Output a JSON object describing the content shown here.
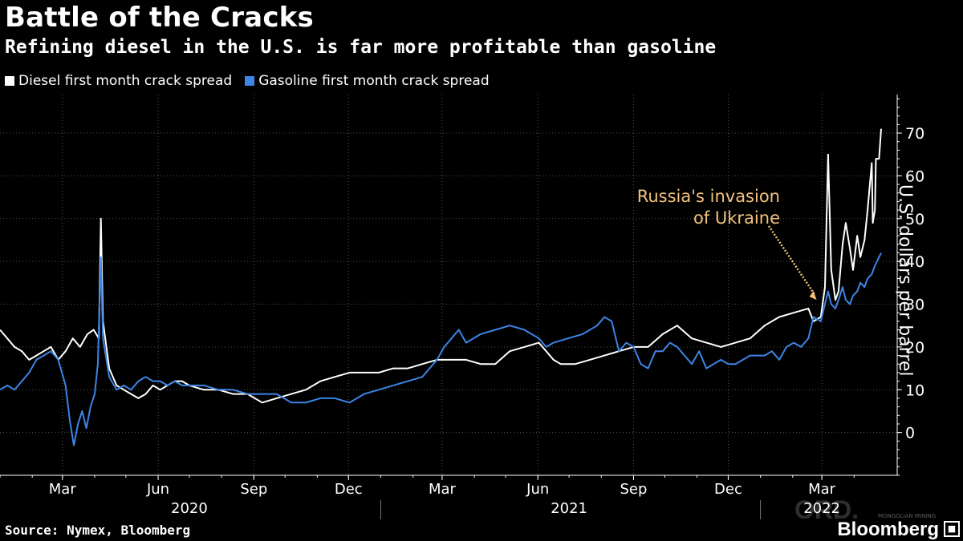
{
  "title": "Battle of the Cracks",
  "subtitle": "Refining diesel in the U.S. is far more profitable than gasoline",
  "source": "Source: Nymex, Bloomberg",
  "brand": "Bloomberg",
  "watermark": "ORD.",
  "watermark_sub": "MONGOLIAN MINING",
  "colors": {
    "diesel": "#ffffff",
    "gasoline": "#3d85e6",
    "annotation": "#f2c27b",
    "grid": "#555555"
  },
  "chart_data": {
    "type": "line",
    "title": "Battle of the Cracks",
    "subtitle": "Refining diesel in the U.S. is far more profitable than gasoline",
    "ylabel": "U.S. dollars per barrel",
    "ylim": [
      -10,
      79
    ],
    "yticks": [
      0,
      10,
      20,
      30,
      40,
      50,
      60,
      70
    ],
    "xlim": [
      "2020-01-01",
      "2022-04-27"
    ],
    "month_ticks": [
      {
        "label": "Mar",
        "x": "2020-03-01"
      },
      {
        "label": "Jun",
        "x": "2020-06-01"
      },
      {
        "label": "Sep",
        "x": "2020-09-01"
      },
      {
        "label": "Dec",
        "x": "2020-12-01"
      },
      {
        "label": "Mar",
        "x": "2021-03-01"
      },
      {
        "label": "Jun",
        "x": "2021-06-01"
      },
      {
        "label": "Sep",
        "x": "2021-09-01"
      },
      {
        "label": "Dec",
        "x": "2021-12-01"
      },
      {
        "label": "Mar",
        "x": "2022-03-01"
      }
    ],
    "year_labels": [
      {
        "label": "2020",
        "x": "2020-07-01"
      },
      {
        "label": "2021",
        "x": "2021-07-01"
      },
      {
        "label": "2022",
        "x": "2022-03-01"
      }
    ],
    "year_boundaries": [
      "2021-01-01",
      "2022-01-01"
    ],
    "grid": true,
    "legend": "top-left",
    "series": [
      {
        "name": "Diesel first month crack spread",
        "color": "#ffffff",
        "points": [
          [
            "2020-01-01",
            24
          ],
          [
            "2020-01-08",
            22
          ],
          [
            "2020-01-15",
            20
          ],
          [
            "2020-01-22",
            19
          ],
          [
            "2020-01-29",
            17
          ],
          [
            "2020-02-05",
            18
          ],
          [
            "2020-02-12",
            19
          ],
          [
            "2020-02-19",
            20
          ],
          [
            "2020-02-26",
            17
          ],
          [
            "2020-03-04",
            19
          ],
          [
            "2020-03-11",
            22
          ],
          [
            "2020-03-18",
            20
          ],
          [
            "2020-03-25",
            23
          ],
          [
            "2020-03-31",
            24
          ],
          [
            "2020-04-05",
            22
          ],
          [
            "2020-04-07",
            50
          ],
          [
            "2020-04-09",
            26
          ],
          [
            "2020-04-15",
            15
          ],
          [
            "2020-04-22",
            11
          ],
          [
            "2020-04-29",
            10
          ],
          [
            "2020-05-06",
            9
          ],
          [
            "2020-05-13",
            8
          ],
          [
            "2020-05-20",
            9
          ],
          [
            "2020-05-27",
            11
          ],
          [
            "2020-06-03",
            10
          ],
          [
            "2020-06-10",
            11
          ],
          [
            "2020-06-17",
            12
          ],
          [
            "2020-06-24",
            12
          ],
          [
            "2020-07-01",
            11
          ],
          [
            "2020-07-15",
            10
          ],
          [
            "2020-07-29",
            10
          ],
          [
            "2020-08-12",
            9
          ],
          [
            "2020-08-26",
            9
          ],
          [
            "2020-09-09",
            7
          ],
          [
            "2020-09-23",
            8
          ],
          [
            "2020-10-07",
            9
          ],
          [
            "2020-10-21",
            10
          ],
          [
            "2020-11-04",
            12
          ],
          [
            "2020-11-18",
            13
          ],
          [
            "2020-12-02",
            14
          ],
          [
            "2020-12-16",
            14
          ],
          [
            "2020-12-30",
            14
          ],
          [
            "2021-01-13",
            15
          ],
          [
            "2021-01-27",
            15
          ],
          [
            "2021-02-10",
            16
          ],
          [
            "2021-02-24",
            17
          ],
          [
            "2021-03-10",
            17
          ],
          [
            "2021-03-24",
            17
          ],
          [
            "2021-04-07",
            16
          ],
          [
            "2021-04-21",
            16
          ],
          [
            "2021-05-05",
            19
          ],
          [
            "2021-05-19",
            20
          ],
          [
            "2021-06-02",
            21
          ],
          [
            "2021-06-09",
            19
          ],
          [
            "2021-06-16",
            17
          ],
          [
            "2021-06-23",
            16
          ],
          [
            "2021-07-07",
            16
          ],
          [
            "2021-07-21",
            17
          ],
          [
            "2021-08-04",
            18
          ],
          [
            "2021-08-18",
            19
          ],
          [
            "2021-09-01",
            20
          ],
          [
            "2021-09-15",
            20
          ],
          [
            "2021-09-29",
            23
          ],
          [
            "2021-10-13",
            25
          ],
          [
            "2021-10-27",
            22
          ],
          [
            "2021-11-10",
            21
          ],
          [
            "2021-11-24",
            20
          ],
          [
            "2021-12-08",
            21
          ],
          [
            "2021-12-22",
            22
          ],
          [
            "2022-01-05",
            25
          ],
          [
            "2022-01-19",
            27
          ],
          [
            "2022-02-02",
            28
          ],
          [
            "2022-02-16",
            29
          ],
          [
            "2022-02-21",
            26
          ],
          [
            "2022-02-28",
            27
          ],
          [
            "2022-03-04",
            34
          ],
          [
            "2022-03-07",
            65
          ],
          [
            "2022-03-10",
            38
          ],
          [
            "2022-03-14",
            31
          ],
          [
            "2022-03-17",
            33
          ],
          [
            "2022-03-21",
            44
          ],
          [
            "2022-03-24",
            49
          ],
          [
            "2022-03-28",
            43
          ],
          [
            "2022-03-31",
            38
          ],
          [
            "2022-04-04",
            46
          ],
          [
            "2022-04-07",
            41
          ],
          [
            "2022-04-11",
            45
          ],
          [
            "2022-04-14",
            52
          ],
          [
            "2022-04-18",
            63
          ],
          [
            "2022-04-19",
            49
          ],
          [
            "2022-04-21",
            52
          ],
          [
            "2022-04-22",
            64
          ],
          [
            "2022-04-25",
            64
          ],
          [
            "2022-04-27",
            71
          ]
        ]
      },
      {
        "name": "Gasoline first month crack spread",
        "color": "#3d85e6",
        "points": [
          [
            "2020-01-01",
            10
          ],
          [
            "2020-01-08",
            11
          ],
          [
            "2020-01-15",
            10
          ],
          [
            "2020-01-22",
            12
          ],
          [
            "2020-01-29",
            14
          ],
          [
            "2020-02-05",
            17
          ],
          [
            "2020-02-12",
            18
          ],
          [
            "2020-02-19",
            19
          ],
          [
            "2020-02-26",
            17
          ],
          [
            "2020-03-04",
            11
          ],
          [
            "2020-03-08",
            3
          ],
          [
            "2020-03-12",
            -3
          ],
          [
            "2020-03-16",
            2
          ],
          [
            "2020-03-20",
            5
          ],
          [
            "2020-03-24",
            1
          ],
          [
            "2020-03-28",
            6
          ],
          [
            "2020-04-01",
            9
          ],
          [
            "2020-04-04",
            16
          ],
          [
            "2020-04-07",
            41
          ],
          [
            "2020-04-09",
            22
          ],
          [
            "2020-04-15",
            13
          ],
          [
            "2020-04-22",
            10
          ],
          [
            "2020-04-29",
            11
          ],
          [
            "2020-05-06",
            10
          ],
          [
            "2020-05-13",
            12
          ],
          [
            "2020-05-20",
            13
          ],
          [
            "2020-05-27",
            12
          ],
          [
            "2020-06-03",
            12
          ],
          [
            "2020-06-10",
            11
          ],
          [
            "2020-06-17",
            12
          ],
          [
            "2020-06-24",
            11
          ],
          [
            "2020-07-01",
            11
          ],
          [
            "2020-07-15",
            11
          ],
          [
            "2020-07-29",
            10
          ],
          [
            "2020-08-12",
            10
          ],
          [
            "2020-08-26",
            9
          ],
          [
            "2020-09-09",
            9
          ],
          [
            "2020-09-23",
            9
          ],
          [
            "2020-10-07",
            7
          ],
          [
            "2020-10-21",
            7
          ],
          [
            "2020-11-04",
            8
          ],
          [
            "2020-11-18",
            8
          ],
          [
            "2020-12-02",
            7
          ],
          [
            "2020-12-16",
            9
          ],
          [
            "2020-12-30",
            10
          ],
          [
            "2021-01-13",
            11
          ],
          [
            "2021-01-27",
            12
          ],
          [
            "2021-02-10",
            13
          ],
          [
            "2021-02-24",
            17
          ],
          [
            "2021-03-03",
            20
          ],
          [
            "2021-03-10",
            22
          ],
          [
            "2021-03-17",
            24
          ],
          [
            "2021-03-24",
            21
          ],
          [
            "2021-04-07",
            23
          ],
          [
            "2021-04-21",
            24
          ],
          [
            "2021-05-05",
            25
          ],
          [
            "2021-05-19",
            24
          ],
          [
            "2021-06-02",
            22
          ],
          [
            "2021-06-09",
            20
          ],
          [
            "2021-06-16",
            21
          ],
          [
            "2021-06-30",
            22
          ],
          [
            "2021-07-14",
            23
          ],
          [
            "2021-07-28",
            25
          ],
          [
            "2021-08-04",
            27
          ],
          [
            "2021-08-11",
            26
          ],
          [
            "2021-08-18",
            19
          ],
          [
            "2021-08-25",
            21
          ],
          [
            "2021-09-01",
            20
          ],
          [
            "2021-09-08",
            16
          ],
          [
            "2021-09-15",
            15
          ],
          [
            "2021-09-22",
            19
          ],
          [
            "2021-09-29",
            19
          ],
          [
            "2021-10-06",
            21
          ],
          [
            "2021-10-13",
            20
          ],
          [
            "2021-10-20",
            18
          ],
          [
            "2021-10-27",
            16
          ],
          [
            "2021-11-03",
            19
          ],
          [
            "2021-11-10",
            15
          ],
          [
            "2021-11-17",
            16
          ],
          [
            "2021-11-24",
            17
          ],
          [
            "2021-12-01",
            16
          ],
          [
            "2021-12-08",
            16
          ],
          [
            "2021-12-15",
            17
          ],
          [
            "2021-12-22",
            18
          ],
          [
            "2022-01-05",
            18
          ],
          [
            "2022-01-12",
            19
          ],
          [
            "2022-01-19",
            17
          ],
          [
            "2022-01-26",
            20
          ],
          [
            "2022-02-02",
            21
          ],
          [
            "2022-02-09",
            20
          ],
          [
            "2022-02-16",
            22
          ],
          [
            "2022-02-21",
            27
          ],
          [
            "2022-02-28",
            26
          ],
          [
            "2022-03-04",
            30
          ],
          [
            "2022-03-07",
            33
          ],
          [
            "2022-03-10",
            30
          ],
          [
            "2022-03-14",
            29
          ],
          [
            "2022-03-17",
            31
          ],
          [
            "2022-03-21",
            34
          ],
          [
            "2022-03-24",
            31
          ],
          [
            "2022-03-28",
            30
          ],
          [
            "2022-03-31",
            32
          ],
          [
            "2022-04-04",
            33
          ],
          [
            "2022-04-07",
            35
          ],
          [
            "2022-04-11",
            34
          ],
          [
            "2022-04-14",
            36
          ],
          [
            "2022-04-18",
            37
          ],
          [
            "2022-04-21",
            39
          ],
          [
            "2022-04-25",
            41
          ],
          [
            "2022-04-27",
            42
          ]
        ]
      }
    ],
    "annotation": {
      "text_line1": "Russia's invasion",
      "text_line2": "of Ukraine",
      "arrow_to": [
        "2022-02-24",
        31
      ]
    }
  }
}
